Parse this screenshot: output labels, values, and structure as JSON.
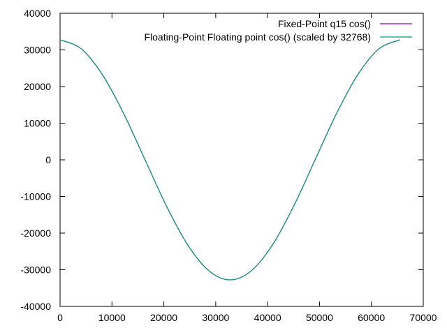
{
  "chart_data": {
    "type": "line",
    "title": "",
    "xlabel": "",
    "ylabel": "",
    "xlim": [
      0,
      70000
    ],
    "ylim": [
      -40000,
      40000
    ],
    "x_ticks": [
      0,
      10000,
      20000,
      30000,
      40000,
      50000,
      60000,
      70000
    ],
    "y_ticks": [
      -40000,
      -30000,
      -20000,
      -10000,
      0,
      10000,
      20000,
      30000,
      40000
    ],
    "x_tick_labels": [
      "0",
      "10000",
      "20000",
      "30000",
      "40000",
      "50000",
      "60000",
      "70000"
    ],
    "y_tick_labels": [
      "-40000",
      "-30000",
      "-20000",
      "-10000",
      "0",
      "10000",
      "20000",
      "30000",
      "40000"
    ],
    "grid": false,
    "legend_position": "top-right",
    "series": [
      {
        "name": "Fixed-Point q15 cos()",
        "color": "#9400d3",
        "x": [
          0,
          4096,
          8192,
          12288,
          16384,
          20480,
          24576,
          28672,
          32768,
          36864,
          40960,
          45056,
          49152,
          53248,
          57344,
          61440,
          65535
        ],
        "y": [
          32767,
          30273,
          23170,
          12539,
          0,
          -12539,
          -23170,
          -30273,
          -32768,
          -30273,
          -23170,
          -12539,
          0,
          12539,
          23170,
          30273,
          32767
        ]
      },
      {
        "name": "Floating-Point Floating point cos() (scaled by 32768)",
        "color": "#009e73",
        "x": [
          0,
          4096,
          8192,
          12288,
          16384,
          20480,
          24576,
          28672,
          32768,
          36864,
          40960,
          45056,
          49152,
          53248,
          57344,
          61440,
          65535
        ],
        "y": [
          32768,
          30274,
          23170,
          12540,
          0,
          -12540,
          -23170,
          -30274,
          -32768,
          -30274,
          -23170,
          -12540,
          0,
          12540,
          23170,
          30274,
          32768
        ]
      }
    ]
  }
}
